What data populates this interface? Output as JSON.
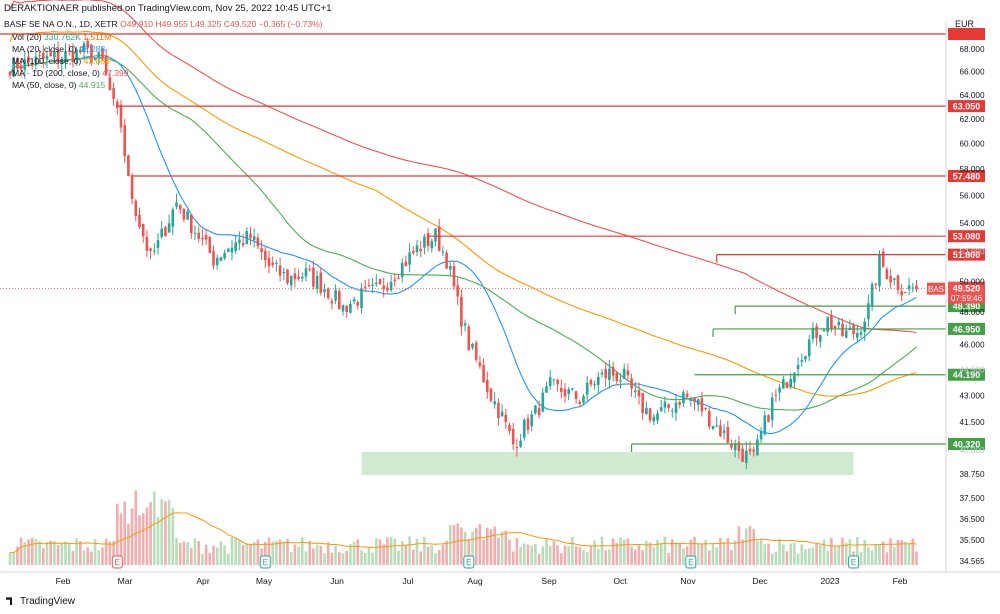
{
  "header": {
    "publisher": "DERAKTIONAER published on TradingView.com, Nov 25, 2022 10:45 UTC+1",
    "symbol": "BASF SE NA O.N., 1D, XETR",
    "ohlc": "O49.910 H49.955 L49.325 C49.520 −0.365 (−0.73%)",
    "currency": "EUR"
  },
  "indicators": [
    {
      "label": "Vol (20)",
      "value1": "330.762K",
      "value2": "1.511M"
    },
    {
      "label": "MA (20, close, 0)",
      "value1": "48.288",
      "value2": ""
    },
    {
      "label": "MA (100, close, 0)",
      "value1": "43.888",
      "value2": ""
    },
    {
      "label": "MA · 1D (200, close, 0)",
      "value1": "47.399",
      "value2": ""
    },
    {
      "label": "MA (50, close, 0)",
      "value1": "44.915",
      "value2": ""
    }
  ],
  "footer": {
    "brand": "TradingView"
  },
  "chart_data": {
    "type": "candlestick",
    "y_scale": "log",
    "x_tick_labels": [
      "Feb",
      "Mar",
      "Apr",
      "May",
      "Jun",
      "Jul",
      "Aug",
      "Sep",
      "Oct",
      "Nov",
      "Dec",
      "2023",
      "Feb"
    ],
    "y_tick_labels": [
      "68.000",
      "66.000",
      "64.000",
      "62.000",
      "60.000",
      "58.000",
      "56.000",
      "54.000",
      "52.000",
      "50.000",
      "48.000",
      "46.000",
      "44.500",
      "43.000",
      "41.500",
      "40.000",
      "38.750",
      "37.500",
      "36.500",
      "35.500",
      "34.565"
    ],
    "price_levels": [
      {
        "label": "63.050",
        "color": "#e53935"
      },
      {
        "label": "57.480",
        "color": "#e53935"
      },
      {
        "label": "53.080",
        "color": "#e53935"
      },
      {
        "label": "51.800",
        "color": "#e53935"
      },
      {
        "label": "48.390",
        "color": "#43a047"
      },
      {
        "label": "46.950",
        "color": "#43a047"
      },
      {
        "label": "44.190",
        "color": "#43a047"
      },
      {
        "label": "40.320",
        "color": "#43a047"
      }
    ],
    "top_level_color": "#e53935",
    "support_zone": {
      "low": 38.7,
      "high": 39.9,
      "color": "#c8e6c9"
    },
    "last_price": {
      "symbol": "BAS",
      "price": "49.520",
      "countdown": "07:59:46",
      "color": "#ef5350"
    },
    "ma_colors": {
      "ma20": "#2196f3",
      "ma50": "#4caf50",
      "ma100": "#ff9800",
      "ma200": "#ef5350"
    },
    "earnings_marker": "E",
    "up_color": "#26a69a",
    "down_color": "#ef5350"
  }
}
